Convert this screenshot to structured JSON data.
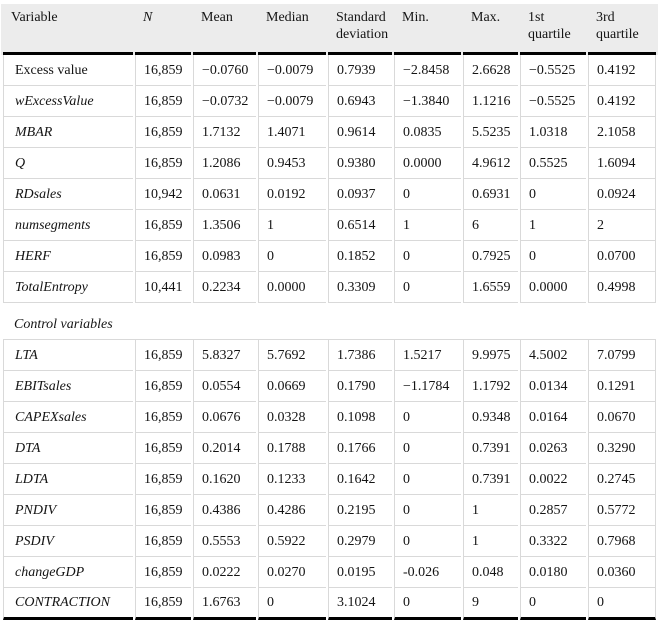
{
  "table": {
    "title_semantic": "Descriptive statistics table",
    "columns": [
      "Variable",
      "N",
      "Mean",
      "Median",
      "Standard deviation",
      "Min.",
      "Max.",
      "1st quartile",
      "3rd quartile"
    ],
    "section_label": "Control variables",
    "rows_main": [
      {
        "name": "Excess value",
        "italic": false,
        "values": [
          "16,859",
          "−0.0760",
          "−0.0079",
          "0.7939",
          "−2.8458",
          "2.6628",
          "−0.5525",
          "0.4192"
        ]
      },
      {
        "name": "wExcessValue",
        "italic": true,
        "values": [
          "16,859",
          "−0.0732",
          "−0.0079",
          "0.6943",
          "−1.3840",
          "1.1216",
          "−0.5525",
          "0.4192"
        ]
      },
      {
        "name": "MBAR",
        "italic": true,
        "values": [
          "16,859",
          "1.7132",
          "1.4071",
          "0.9614",
          "0.0835",
          "5.5235",
          "1.0318",
          "2.1058"
        ]
      },
      {
        "name": "Q",
        "italic": true,
        "values": [
          "16,859",
          "1.2086",
          "0.9453",
          "0.9380",
          "0.0000",
          "4.9612",
          "0.5525",
          "1.6094"
        ]
      },
      {
        "name": "RDsales",
        "italic": true,
        "values": [
          "10,942",
          "0.0631",
          "0.0192",
          "0.0937",
          "0",
          "0.6931",
          "0",
          "0.0924"
        ]
      },
      {
        "name": "numsegments",
        "italic": true,
        "values": [
          "16,859",
          "1.3506",
          "1",
          "0.6514",
          "1",
          "6",
          "1",
          "2"
        ]
      },
      {
        "name": "HERF",
        "italic": true,
        "values": [
          "16,859",
          "0.0983",
          "0",
          "0.1852",
          "0",
          "0.7925",
          "0",
          "0.0700"
        ]
      },
      {
        "name": "TotalEntropy",
        "italic": true,
        "values": [
          "10,441",
          "0.2234",
          "0.0000",
          "0.3309",
          "0",
          "1.6559",
          "0.0000",
          "0.4998"
        ]
      }
    ],
    "rows_controls": [
      {
        "name": "LTA",
        "italic": true,
        "values": [
          "16,859",
          "5.8327",
          "5.7692",
          "1.7386",
          "1.5217",
          "9.9975",
          "4.5002",
          "7.0799"
        ]
      },
      {
        "name": "EBITsales",
        "italic": true,
        "values": [
          "16,859",
          "0.0554",
          "0.0669",
          "0.1790",
          "−1.1784",
          "1.1792",
          "0.0134",
          "0.1291"
        ]
      },
      {
        "name": "CAPEXsales",
        "italic": true,
        "values": [
          "16,859",
          "0.0676",
          "0.0328",
          "0.1098",
          "0",
          "0.9348",
          "0.0164",
          "0.0670"
        ]
      },
      {
        "name": "DTA",
        "italic": true,
        "values": [
          "16,859",
          "0.2014",
          "0.1788",
          "0.1766",
          "0",
          "0.7391",
          "0.0263",
          "0.3290"
        ]
      },
      {
        "name": "LDTA",
        "italic": true,
        "values": [
          "16,859",
          "0.1620",
          "0.1233",
          "0.1642",
          "0",
          "0.7391",
          "0.0022",
          "0.2745"
        ]
      },
      {
        "name": "PNDIV",
        "italic": true,
        "values": [
          "16,859",
          "0.4386",
          "0.4286",
          "0.2195",
          "0",
          "1",
          "0.2857",
          "0.5772"
        ]
      },
      {
        "name": "PSDIV",
        "italic": true,
        "values": [
          "16,859",
          "0.5553",
          "0.5922",
          "0.2979",
          "0",
          "1",
          "0.3322",
          "0.7968"
        ]
      },
      {
        "name": "changeGDP",
        "italic": true,
        "values": [
          "16,859",
          "0.0222",
          "0.0270",
          "0.0195",
          "-0.026",
          "0.048",
          "0.0180",
          "0.0360"
        ]
      },
      {
        "name": "CONTRACTION",
        "italic": true,
        "values": [
          "16,859",
          "1.6763",
          "0",
          "3.1024",
          "0",
          "9",
          "0",
          "0"
        ]
      }
    ]
  },
  "colors": {
    "header_bg": "#ececec",
    "grid_border": "#d9d9d9",
    "heavy_border": "#000000",
    "text": "#141414"
  }
}
